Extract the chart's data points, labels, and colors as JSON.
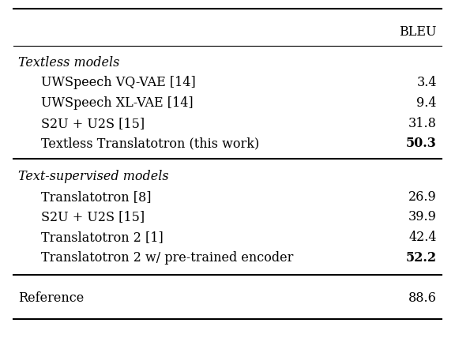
{
  "title": "BLEU",
  "sections": [
    {
      "header": "Textless models",
      "header_italic": true,
      "rows": [
        {
          "label": "UWSpeech VQ-VAE [14]",
          "value": "3.4",
          "bold_value": false,
          "indent": true
        },
        {
          "label": "UWSpeech XL-VAE [14]",
          "value": "9.4",
          "bold_value": false,
          "indent": true
        },
        {
          "label": "S2U + U2S [15]",
          "value": "31.8",
          "bold_value": false,
          "indent": true
        },
        {
          "label": "Textless Translatotron (this work)",
          "value": "50.3",
          "bold_value": true,
          "indent": true
        }
      ]
    },
    {
      "header": "Text-supervised models",
      "header_italic": true,
      "rows": [
        {
          "label": "Translatotron [8]",
          "value": "26.9",
          "bold_value": false,
          "indent": true
        },
        {
          "label": "S2U + U2S [15]",
          "value": "39.9",
          "bold_value": false,
          "indent": true
        },
        {
          "label": "Translatotron 2 [1]",
          "value": "42.4",
          "bold_value": false,
          "indent": true
        },
        {
          "label": "Translatotron 2 w/ pre-trained encoder",
          "value": "52.2",
          "bold_value": true,
          "indent": true
        }
      ]
    }
  ],
  "footer": {
    "label": "Reference",
    "value": "88.6",
    "bold_value": false,
    "indent": false
  },
  "bg_color": "#ffffff",
  "text_color": "#000000",
  "font_size": 11.5,
  "header_font_size": 11.5
}
